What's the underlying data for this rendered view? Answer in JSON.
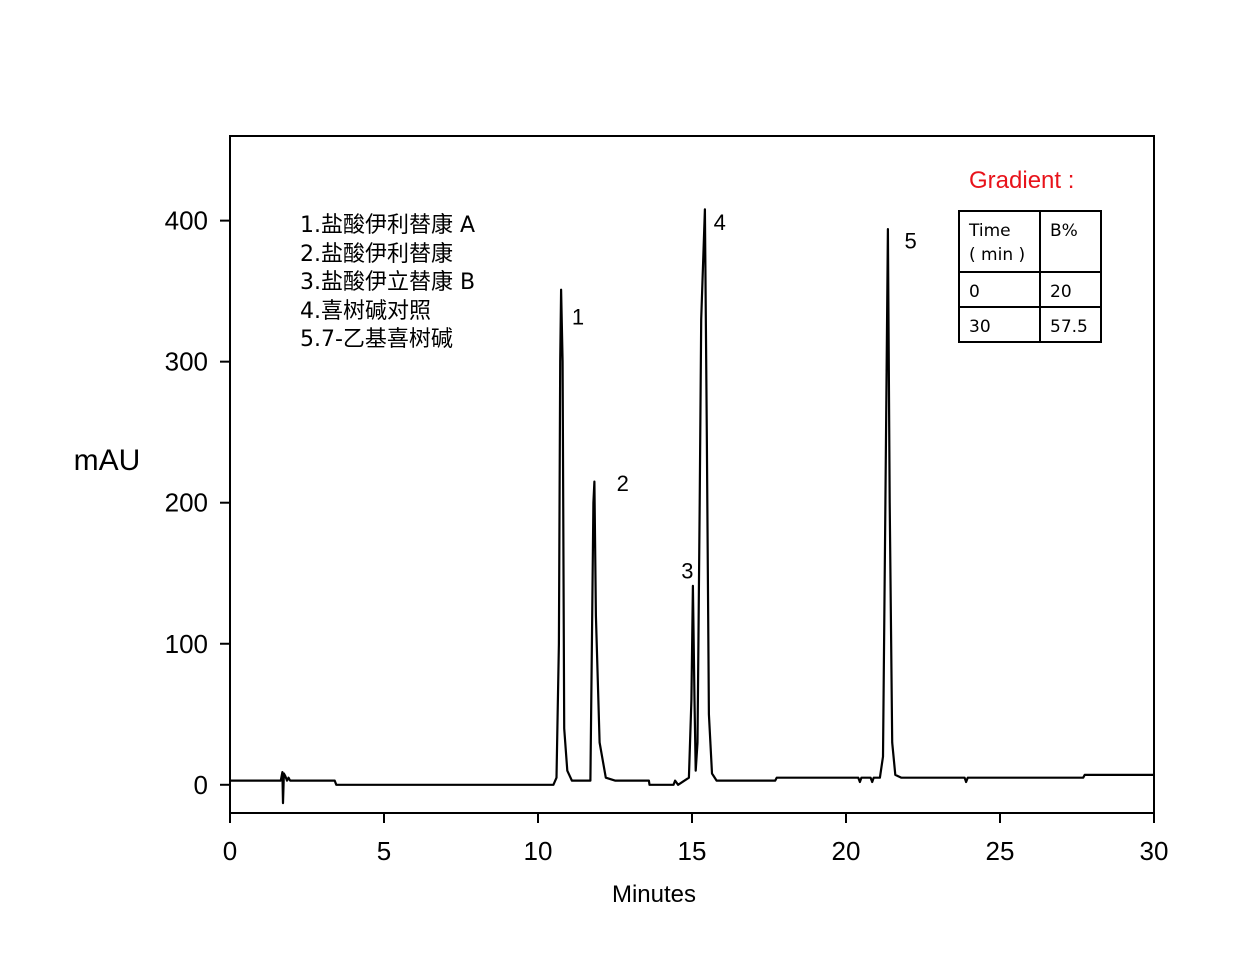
{
  "chart_data": {
    "type": "line",
    "title": "",
    "xlabel": "Minutes",
    "ylabel": "mAU",
    "xlim": [
      0,
      30
    ],
    "ylim": [
      -20,
      460
    ],
    "grid": false,
    "x_ticks": [
      "0",
      "5",
      "10",
      "15",
      "20",
      "25",
      "30"
    ],
    "x_tick_values": [
      0,
      5,
      10,
      15,
      20,
      25,
      30
    ],
    "y_ticks": [
      "0",
      "100",
      "200",
      "300",
      "400"
    ],
    "y_tick_values": [
      0,
      100,
      200,
      300,
      400
    ],
    "series": [
      {
        "name": "chromatogram",
        "color": "#000000",
        "points": [
          [
            0,
            3
          ],
          [
            1.65,
            3
          ],
          [
            1.7,
            9
          ],
          [
            1.72,
            -13
          ],
          [
            1.75,
            8
          ],
          [
            1.8,
            6
          ],
          [
            1.85,
            3
          ],
          [
            1.9,
            5
          ],
          [
            1.95,
            3
          ],
          [
            3.4,
            3
          ],
          [
            3.45,
            0
          ],
          [
            10.5,
            0
          ],
          [
            10.6,
            5
          ],
          [
            10.68,
            100
          ],
          [
            10.72,
            300
          ],
          [
            10.75,
            351
          ],
          [
            10.8,
            300
          ],
          [
            10.85,
            40
          ],
          [
            10.95,
            10
          ],
          [
            11.1,
            3
          ],
          [
            11.7,
            3
          ],
          [
            11.75,
            100
          ],
          [
            11.8,
            200
          ],
          [
            11.83,
            215
          ],
          [
            11.88,
            120
          ],
          [
            12.0,
            30
          ],
          [
            12.2,
            5
          ],
          [
            12.5,
            3
          ],
          [
            13.6,
            3
          ],
          [
            13.62,
            0
          ],
          [
            14.4,
            0
          ],
          [
            14.45,
            3
          ],
          [
            14.55,
            0
          ],
          [
            14.9,
            5
          ],
          [
            14.98,
            60
          ],
          [
            15.03,
            141
          ],
          [
            15.08,
            60
          ],
          [
            15.12,
            10
          ],
          [
            15.18,
            30
          ],
          [
            15.25,
            200
          ],
          [
            15.3,
            330
          ],
          [
            15.42,
            408
          ],
          [
            15.48,
            250
          ],
          [
            15.55,
            50
          ],
          [
            15.65,
            8
          ],
          [
            15.8,
            3
          ],
          [
            17.7,
            3
          ],
          [
            17.75,
            5
          ],
          [
            20.4,
            5
          ],
          [
            20.45,
            2
          ],
          [
            20.5,
            5
          ],
          [
            20.8,
            5
          ],
          [
            20.85,
            2
          ],
          [
            20.9,
            5
          ],
          [
            21.1,
            5
          ],
          [
            21.2,
            20
          ],
          [
            21.28,
            200
          ],
          [
            21.36,
            394
          ],
          [
            21.42,
            200
          ],
          [
            21.5,
            30
          ],
          [
            21.6,
            7
          ],
          [
            21.8,
            5
          ],
          [
            23.85,
            5
          ],
          [
            23.9,
            2
          ],
          [
            23.95,
            5
          ],
          [
            27.7,
            5
          ],
          [
            27.75,
            7
          ],
          [
            30,
            7
          ]
        ]
      }
    ],
    "peaks": [
      {
        "label": "1",
        "retention_time": 10.75,
        "height": 351,
        "label_pos": [
          11.3,
          332
        ]
      },
      {
        "label": "2",
        "retention_time": 11.83,
        "height": 215,
        "label_pos": [
          12.75,
          214
        ]
      },
      {
        "label": "3",
        "retention_time": 15.03,
        "height": 141,
        "label_pos": [
          14.85,
          152
        ]
      },
      {
        "label": "4",
        "retention_time": 15.42,
        "height": 408,
        "label_pos": [
          15.9,
          399
        ]
      },
      {
        "label": "5",
        "retention_time": 21.36,
        "height": 394,
        "label_pos": [
          22.1,
          386
        ]
      }
    ],
    "legend": {
      "placement": "top-left",
      "entries": [
        "1.盐酸伊利替康 A",
        "2.盐酸伊利替康",
        "3.盐酸伊立替康 B",
        "4.喜树碱对照",
        "5.7-乙基喜树碱"
      ]
    },
    "gradient": {
      "title": "Gradient :",
      "title_color": "#e8131b",
      "headers": [
        "Time",
        "( min )",
        "B%"
      ],
      "rows": [
        [
          "0",
          "20"
        ],
        [
          "30",
          "57.5"
        ]
      ]
    }
  }
}
